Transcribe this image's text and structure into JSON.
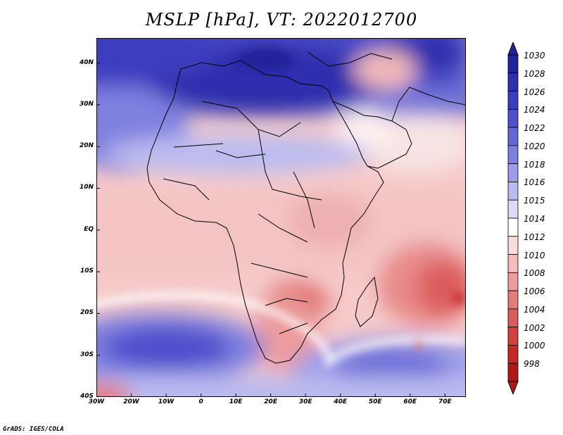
{
  "title": "MSLP [hPa], VT: 2022012700",
  "credit": "GrADS: IGES/COLA",
  "map": {
    "lon_range": [
      -30,
      76
    ],
    "lat_range": [
      -40,
      46
    ],
    "lat_ticks": [
      {
        "value": 40,
        "label": "40N"
      },
      {
        "value": 30,
        "label": "30N"
      },
      {
        "value": 20,
        "label": "20N"
      },
      {
        "value": 10,
        "label": "10N"
      },
      {
        "value": 0,
        "label": "EQ"
      },
      {
        "value": -10,
        "label": "10S"
      },
      {
        "value": -20,
        "label": "20S"
      },
      {
        "value": -30,
        "label": "30S"
      },
      {
        "value": -40,
        "label": "40S"
      }
    ],
    "lon_ticks": [
      {
        "value": -30,
        "label": "30W"
      },
      {
        "value": -20,
        "label": "20W"
      },
      {
        "value": -10,
        "label": "10W"
      },
      {
        "value": 0,
        "label": "0"
      },
      {
        "value": 10,
        "label": "10E"
      },
      {
        "value": 20,
        "label": "20E"
      },
      {
        "value": 30,
        "label": "30E"
      },
      {
        "value": 40,
        "label": "40E"
      },
      {
        "value": 50,
        "label": "50E"
      },
      {
        "value": 60,
        "label": "60E"
      },
      {
        "value": 70,
        "label": "70E"
      }
    ]
  },
  "colorbar": {
    "levels": [
      "1030",
      "1028",
      "1026",
      "1024",
      "1022",
      "1020",
      "1018",
      "1016",
      "1015",
      "1014",
      "1012",
      "1010",
      "1008",
      "1006",
      "1004",
      "1002",
      "1000",
      "998"
    ],
    "colors": [
      "#22229a",
      "#2e2eae",
      "#3c3cc0",
      "#5050cc",
      "#6666d6",
      "#8080e0",
      "#9c9ce8",
      "#babaf0",
      "#dcdcf8",
      "#ffffff",
      "#fadcdc",
      "#f4bcbc",
      "#ec9c9c",
      "#e47c7c",
      "#dc5c5c",
      "#d24040",
      "#c42828",
      "#b01818"
    ]
  },
  "colors": {
    "land_border": "#000000"
  }
}
